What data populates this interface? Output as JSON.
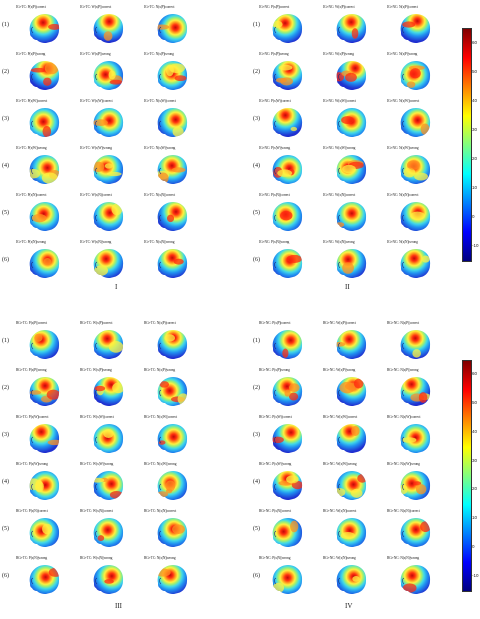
{
  "row_labels": [
    "(1)",
    "(2)",
    "(3)",
    "(4)",
    "(5)",
    "(6)"
  ],
  "panels": [
    {
      "id": "I",
      "label": "I",
      "captions": [
        [
          "IG+TC: P(x|P)|correct",
          "IG+TC: W(x|P)|correct",
          "IG+TC: N(x|P)|correct"
        ],
        [
          "IG+TC: P(x|P)|wrong",
          "IG+TC: W(x|P)|wrong",
          "IG+TC: N(x|P)|wrong"
        ],
        [
          "IG+TC: P(x|W)|correct",
          "IG+TC: W(x|W)|correct",
          "IG+TC: N(x|W)|correct"
        ],
        [
          "IG+TC: P(x|W)|wrong",
          "IG+TC: W(x|W)|wrong",
          "IG+TC: N(x|W)|wrong"
        ],
        [
          "IG+TC: P(x|N)|correct",
          "IG+TC: W(x|N)|correct",
          "IG+TC: N(x|N)|correct"
        ],
        [
          "IG+TC: P(x|N)|wrong",
          "IG+TC: W(x|N)|wrong",
          "IG+TC: N(x|N)|wrong"
        ]
      ]
    },
    {
      "id": "II",
      "label": "II",
      "captions": [
        [
          "IG+NC: P(x|P)|correct",
          "IG+NC: W(x|P)|correct",
          "IG+NC: N(x|P)|correct"
        ],
        [
          "IG+NC: P(x|P)|wrong",
          "IG+NC: W(x|P)|wrong",
          "IG+NC: N(x|P)|wrong"
        ],
        [
          "IG+NC: P(x|W)|correct",
          "IG+NC: W(x|W)|correct",
          "IG+NC: N(x|W)|correct"
        ],
        [
          "IG+NC: P(x|W)|wrong",
          "IG+NC: W(x|W)|wrong",
          "IG+NC: N(x|W)|wrong"
        ],
        [
          "IG+NC: P(x|N)|correct",
          "IG+NC: W(x|N)|correct",
          "IG+NC: N(x|N)|correct"
        ],
        [
          "IG+NC: P(x|N)|wrong",
          "IG+NC: W(x|N)|wrong",
          "IG+NC: N(x|N)|wrong"
        ]
      ]
    },
    {
      "id": "III",
      "label": "III",
      "captions": [
        [
          "RG+TC: P(x|P)|correct",
          "RG+TC: W(x|P)|correct",
          "RG+TC: N(x|P)|correct"
        ],
        [
          "RG+TC: P(x|P)|wrong",
          "RG+TC: W(x|P)|wrong",
          "RG+TC: N(x|P)|wrong"
        ],
        [
          "RG+TC: P(x|W)|correct",
          "RG+TC: W(x|W)|correct",
          "RG+TC: N(x|W)|correct"
        ],
        [
          "RG+TC: P(x|W)|wrong",
          "RG+TC: W(x|W)|wrong",
          "RG+TC: N(x|W)|wrong"
        ],
        [
          "RG+TC: P(x|N)|correct",
          "RG+TC: W(x|N)|correct",
          "RG+TC: N(x|N)|correct"
        ],
        [
          "RG+TC: P(x|N)|wrong",
          "RG+TC: W(x|N)|wrong",
          "RG+TC: N(x|N)|wrong"
        ]
      ]
    },
    {
      "id": "IV",
      "label": "IV",
      "captions": [
        [
          "RG+NC: P(x|P)|correct",
          "RG+NC: W(x|P)|correct",
          "RG+NC: N(x|P)|correct"
        ],
        [
          "RG+NC: P(x|P)|wrong",
          "RG+NC: W(x|P)|wrong",
          "RG+NC: N(x|P)|wrong"
        ],
        [
          "RG+NC: P(x|W)|correct",
          "RG+NC: W(x|W)|correct",
          "RG+NC: N(x|W)|correct"
        ],
        [
          "RG+NC: P(x|W)|wrong",
          "RG+NC: W(x|W)|wrong",
          "RG+NC: N(x|W)|wrong"
        ],
        [
          "RG+NC: P(x|N)|correct",
          "RG+NC: W(x|N)|correct",
          "RG+NC: N(x|N)|correct"
        ],
        [
          "RG+NC: P(x|N)|wrong",
          "RG+NC: W(x|N)|wrong",
          "RG+NC: N(x|N)|wrong"
        ]
      ]
    }
  ],
  "colorbar": {
    "ticks": [
      "60",
      "50",
      "40",
      "30",
      "20",
      "10",
      "0",
      "-10"
    ],
    "min": -15,
    "max": 65,
    "colors": [
      "#7f0000",
      "#ff0000",
      "#ff8000",
      "#ffff00",
      "#80ff80",
      "#00ffff",
      "#0080ff",
      "#0000ff",
      "#00007f"
    ]
  }
}
